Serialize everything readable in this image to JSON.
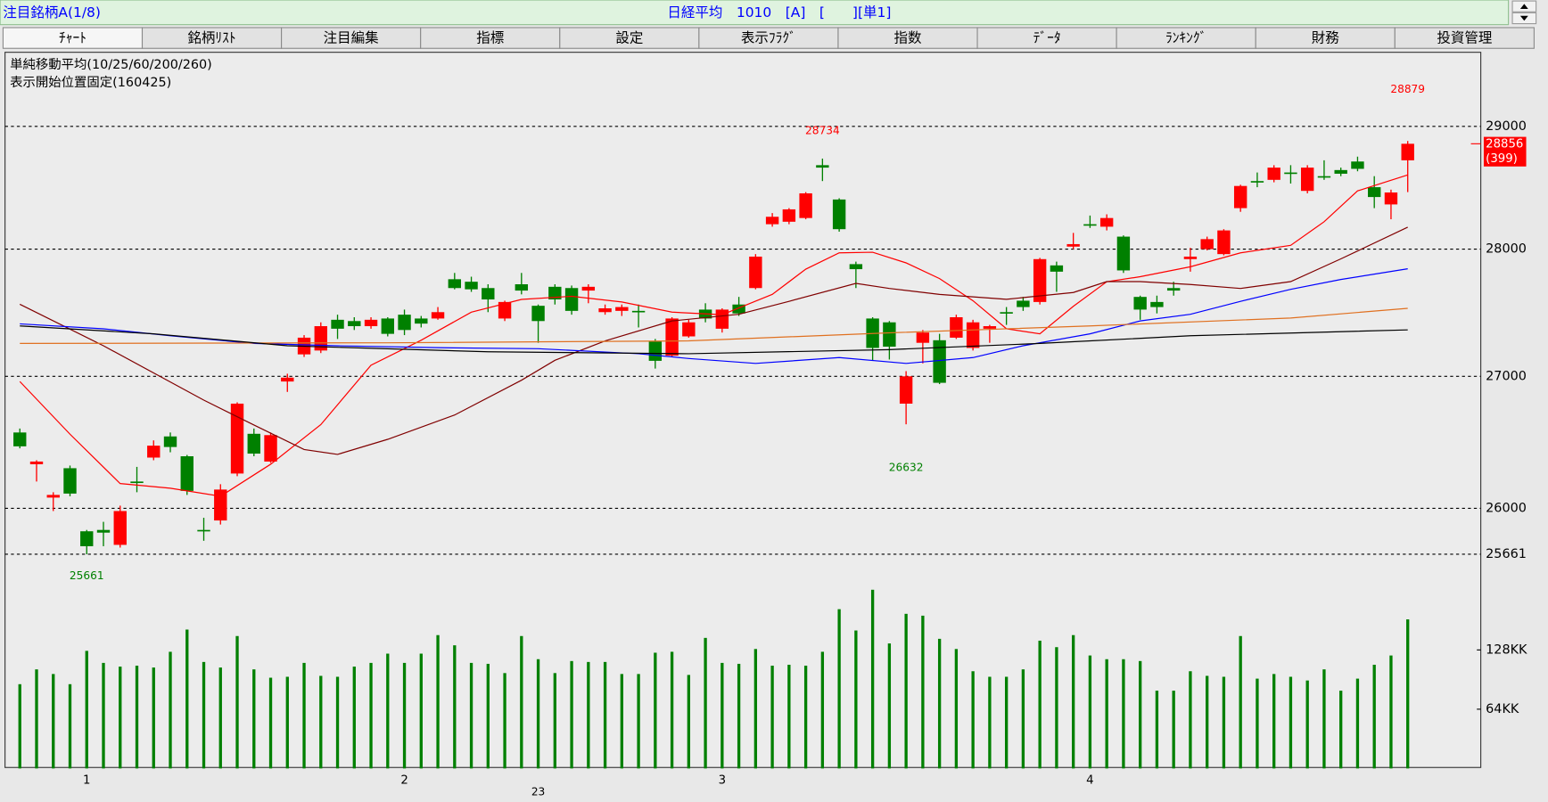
{
  "header": {
    "title": "注目銘柄A(1/8)",
    "info": "日経平均　1010　[A]　[　　][単1]"
  },
  "tabs": [
    "ﾁｬｰﾄ",
    "銘柄ﾘｽﾄ",
    "注目編集",
    "指標",
    "設定",
    "表示ﾌﾗｸﾞ",
    "指数",
    "ﾃﾞｰﾀ",
    "ﾗﾝｷﾝｸﾞ",
    "財務",
    "投資管理"
  ],
  "chart_data": {
    "type": "candlestick",
    "legend_text": "単純移動平均(10/25/60/200/260)",
    "note": "表示開始位置固定(160425)",
    "log_scale": true,
    "grid": true,
    "up_color": "#ff0000",
    "down_color": "#008000",
    "volume_color": "#008000",
    "categories": [
      null,
      null,
      null,
      null,
      "1",
      null,
      null,
      null,
      null,
      null,
      null,
      null,
      null,
      null,
      null,
      null,
      null,
      null,
      null,
      null,
      null,
      null,
      null,
      "2",
      null,
      null,
      null,
      null,
      null,
      null,
      null,
      null,
      null,
      null,
      null,
      null,
      null,
      null,
      null,
      null,
      null,
      null,
      "3",
      null,
      null,
      null,
      null,
      null,
      null,
      null,
      null,
      null,
      null,
      null,
      null,
      null,
      null,
      null,
      null,
      null,
      null,
      null,
      null,
      null,
      "4",
      null,
      null,
      null,
      null,
      null,
      null,
      null,
      null,
      null,
      null,
      null,
      null,
      null,
      null,
      null,
      null,
      null,
      null,
      null
    ],
    "year_categories": [
      null,
      null,
      null,
      null,
      null,
      null,
      null,
      null,
      null,
      null,
      null,
      null,
      null,
      null,
      null,
      null,
      null,
      null,
      null,
      null,
      null,
      null,
      null,
      null,
      null,
      null,
      null,
      null,
      null,
      null,
      null,
      "23",
      null,
      null,
      null,
      null,
      null,
      null,
      null,
      null,
      null,
      null,
      null,
      null,
      null,
      null,
      null,
      null,
      null,
      null,
      null,
      null,
      null,
      null,
      null,
      null,
      null,
      null,
      null,
      null,
      null,
      null,
      null,
      null,
      null,
      null,
      null,
      null,
      null,
      null,
      null,
      null,
      null,
      null,
      null,
      null,
      null,
      null,
      null,
      null,
      null,
      null,
      null,
      null
    ],
    "open": [
      26570,
      26330,
      26080,
      26300,
      25830,
      25840,
      25730,
      26200,
      26380,
      26540,
      26390,
      25840,
      25910,
      26260,
      26560,
      26350,
      26960,
      27170,
      27200,
      27440,
      27430,
      27390,
      27450,
      27480,
      27450,
      27450,
      27760,
      27740,
      27690,
      27450,
      27720,
      27550,
      27700,
      27690,
      27670,
      27500,
      27510,
      27510,
      27270,
      27160,
      27310,
      27520,
      27370,
      27560,
      27690,
      28200,
      28220,
      28250,
      28680,
      28400,
      27880,
      27450,
      27420,
      26790,
      27260,
      27280,
      27300,
      27220,
      27370,
      27500,
      27590,
      27580,
      27870,
      28020,
      28200,
      28180,
      28100,
      27620,
      27580,
      27690,
      27920,
      28000,
      27960,
      28330,
      28550,
      28560,
      28620,
      28470,
      28590,
      28640,
      28710,
      28500,
      28360,
      28720
    ],
    "high": [
      26600,
      26360,
      26120,
      26320,
      25840,
      25900,
      26020,
      26310,
      26510,
      26570,
      26400,
      25930,
      26180,
      26800,
      26600,
      26570,
      27020,
      27320,
      27420,
      27480,
      27460,
      27460,
      27460,
      27520,
      27470,
      27540,
      27810,
      27780,
      27720,
      27590,
      27810,
      27560,
      27720,
      27710,
      27720,
      27560,
      27560,
      27560,
      27290,
      27460,
      27440,
      27570,
      27530,
      27620,
      27960,
      28290,
      28330,
      28460,
      28734,
      28410,
      27900,
      27460,
      27430,
      27040,
      27360,
      27330,
      27480,
      27440,
      27400,
      27540,
      27620,
      27930,
      27900,
      28130,
      28270,
      28280,
      28110,
      27630,
      27630,
      27740,
      28010,
      28100,
      28160,
      28520,
      28620,
      28680,
      28680,
      28680,
      28720,
      28660,
      28750,
      28590,
      28480,
      28879
    ],
    "low": [
      26450,
      26200,
      25980,
      26090,
      25661,
      25720,
      25710,
      26120,
      26360,
      26420,
      26100,
      25760,
      25880,
      26240,
      26390,
      26340,
      26880,
      27150,
      27180,
      27290,
      27360,
      27370,
      27310,
      27320,
      27380,
      27440,
      27680,
      27660,
      27500,
      27430,
      27640,
      27260,
      27560,
      27480,
      27570,
      27480,
      27470,
      27380,
      27060,
      27150,
      27300,
      27420,
      27340,
      27470,
      27680,
      28180,
      28200,
      28240,
      28550,
      28140,
      27690,
      27120,
      27130,
      26632,
      27100,
      26940,
      27290,
      27200,
      27260,
      27400,
      27510,
      27560,
      27660,
      28000,
      28170,
      28150,
      27810,
      27440,
      27490,
      27630,
      27820,
      27990,
      27950,
      28300,
      28500,
      28540,
      28530,
      28450,
      28560,
      28590,
      28630,
      28330,
      28240,
      28460
    ],
    "close": [
      26465,
      26350,
      26100,
      26110,
      25720,
      25820,
      25980,
      26190,
      26470,
      26460,
      26130,
      25830,
      26140,
      26790,
      26410,
      26550,
      26990,
      27300,
      27390,
      27370,
      27390,
      27440,
      27330,
      27360,
      27410,
      27500,
      27690,
      27680,
      27600,
      27580,
      27670,
      27430,
      27600,
      27510,
      27700,
      27530,
      27540,
      27500,
      27120,
      27450,
      27420,
      27450,
      27520,
      27490,
      27940,
      28260,
      28320,
      28450,
      28660,
      28160,
      27840,
      27220,
      27230,
      27000,
      27340,
      26950,
      27460,
      27420,
      27390,
      27490,
      27540,
      27920,
      27820,
      28040,
      28190,
      28250,
      27830,
      27520,
      27540,
      27670,
      27940,
      28080,
      28150,
      28510,
      28540,
      28660,
      28610,
      28660,
      28580,
      28610,
      28650,
      28420,
      28457,
      28856
    ],
    "volume": [
      91,
      107,
      102,
      91,
      127,
      114,
      110,
      111,
      109,
      126,
      150,
      115,
      109,
      143,
      107,
      98,
      99,
      114,
      100,
      99,
      110,
      114,
      124,
      114,
      124,
      144,
      133,
      114,
      113,
      103,
      143,
      118,
      103,
      116,
      115,
      115,
      102,
      102,
      125,
      126,
      101,
      141,
      114,
      113,
      129,
      111,
      112,
      111,
      126,
      172,
      149,
      193,
      135,
      167,
      165,
      140,
      129,
      105,
      99,
      99,
      107,
      138,
      131,
      144,
      122,
      118,
      118,
      116,
      84,
      84,
      105,
      100,
      99,
      143,
      97,
      102,
      99,
      95,
      107,
      84,
      97,
      112,
      122,
      161
    ],
    "change": {
      "value": 399,
      "label": "(399)"
    },
    "series": [
      {
        "color": "#ff0000",
        "x": [
          0,
          3,
          6,
          9,
          12,
          15,
          18,
          21,
          24,
          27,
          30,
          33,
          36,
          39,
          42,
          45,
          47,
          49,
          51,
          53,
          55,
          57,
          59,
          61,
          63,
          65,
          67,
          70,
          73,
          76,
          78,
          80,
          83
        ],
        "values": [
          26960,
          26557,
          26185,
          26150,
          26090,
          26330,
          26630,
          27086,
          27280,
          27500,
          27600,
          27625,
          27580,
          27500,
          27480,
          27640,
          27840,
          27970,
          27975,
          27890,
          27765,
          27590,
          27370,
          27330,
          27546,
          27740,
          27780,
          27859,
          27970,
          28030,
          28220,
          28470,
          28600
        ]
      },
      {
        "color": "#800000",
        "x": [
          0,
          5,
          11,
          14,
          17,
          19,
          22,
          26,
          30,
          32,
          35,
          39,
          43,
          46,
          50,
          52,
          55,
          59,
          63,
          65,
          67,
          70,
          73,
          76,
          79,
          83
        ],
        "values": [
          27562,
          27237,
          26817,
          26627,
          26441,
          26404,
          26518,
          26703,
          26970,
          27124,
          27275,
          27431,
          27483,
          27585,
          27727,
          27687,
          27640,
          27601,
          27655,
          27741,
          27741,
          27718,
          27687,
          27741,
          27922,
          28176
        ]
      },
      {
        "color": "#0000ff",
        "x": [
          0,
          5,
          9,
          14,
          19,
          25,
          31,
          37,
          40,
          44,
          49,
          53,
          57,
          60,
          64,
          67,
          70,
          73,
          76,
          79,
          83
        ],
        "values": [
          27408,
          27369,
          27315,
          27255,
          27237,
          27222,
          27214,
          27175,
          27138,
          27100,
          27145,
          27100,
          27145,
          27237,
          27330,
          27431,
          27483,
          27585,
          27680,
          27758,
          27843
        ]
      },
      {
        "color": "#e07020",
        "x": [
          0,
          22,
          40,
          52,
          64,
          76,
          83
        ],
        "values": [
          27255,
          27260,
          27275,
          27338,
          27392,
          27454,
          27530
        ]
      },
      {
        "color": "#000000",
        "x": [
          0,
          8,
          16,
          28,
          40,
          52,
          61,
          70,
          83
        ],
        "values": [
          27392,
          27330,
          27237,
          27190,
          27175,
          27207,
          27255,
          27315,
          27361
        ]
      }
    ],
    "ylim": [
      25530,
      29604
    ],
    "yticks": [
      29000,
      28000,
      27000,
      26000,
      25661
    ],
    "vlim": [
      0,
      212
    ],
    "vticks": [
      {
        "value": 128,
        "label": "128KK"
      },
      {
        "value": 64,
        "label": "64KK"
      }
    ]
  }
}
